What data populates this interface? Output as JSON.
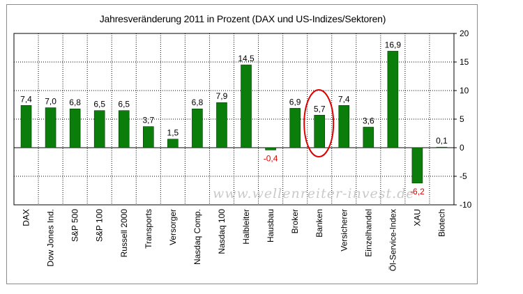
{
  "chart_data": {
    "type": "bar",
    "title": "Jahresveränderung 2011 in Prozent  (DAX und US-Indizes/Sektoren)",
    "categories": [
      "DAX",
      "Dow Jones Ind.",
      "S&P 500",
      "S&P 100",
      "Russell 2000",
      "Transports",
      "Versorger",
      "Nasdaq Comp.",
      "Nasdaq 100",
      "Halbleiter",
      "Hausbau",
      "Broker",
      "Banken",
      "Versicherer",
      "Einzelhandel",
      "Öl-Service-Index",
      "XAU",
      "Biotech"
    ],
    "values": [
      7.4,
      7.0,
      6.8,
      6.5,
      6.5,
      3.7,
      1.5,
      6.8,
      7.9,
      14.5,
      -0.4,
      6.9,
      5.7,
      7.4,
      3.6,
      16.9,
      -6.2,
      0.1
    ],
    "data_labels": [
      "7,4",
      "7,0",
      "6,8",
      "6,5",
      "6,5",
      "3,7",
      "1,5",
      "6,8",
      "7,9",
      "14,5",
      "-0,4",
      "6,9",
      "5,7",
      "7,4",
      "3,6",
      "16,9",
      "-6,2",
      "0,1"
    ],
    "ylim": [
      -10,
      20
    ],
    "yticks": [
      20,
      15,
      10,
      5,
      0,
      -5,
      -10
    ],
    "y_axis_side": "right",
    "grid": true,
    "bar_color": "#0a7d0a",
    "negative_label_color": "#e00000",
    "highlight": {
      "category": "Banken",
      "shape": "ellipse",
      "color": "#e00000"
    },
    "watermark": "www.wellenreiter-invest.de"
  }
}
